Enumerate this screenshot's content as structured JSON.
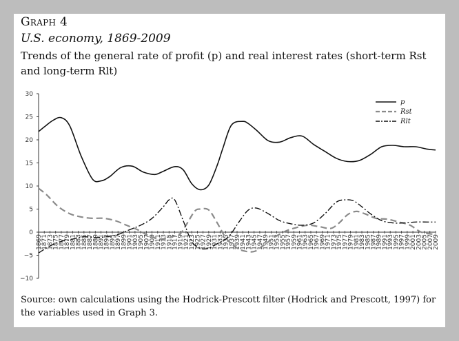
{
  "figure": {
    "label": "Graph 4",
    "title": "U.S. economy, 1869-2009",
    "subtitle": "Trends of the general rate of profit (p) and real interest rates (short-term Rst and long-term Rlt)",
    "source": "Source: own calculations using the Hodrick-Prescott filter (Hodrick and Prescott, 1997) for the variables used in Graph 3."
  },
  "chart_data": {
    "type": "line",
    "title": "",
    "xlabel": "",
    "ylabel": "",
    "ylim": [
      -10,
      30
    ],
    "yticks": [
      -10,
      -5,
      0,
      5,
      10,
      15,
      20,
      25,
      30
    ],
    "xlim": [
      1869,
      2009
    ],
    "x_tick_labels": [
      "1869",
      "1871",
      "1873",
      "1875",
      "1877",
      "1879",
      "1881",
      "1883",
      "1885",
      "1887",
      "1889",
      "1891",
      "1893",
      "1895",
      "1897",
      "1899",
      "1901",
      "1903",
      "1905",
      "1907",
      "1909",
      "1911",
      "1913",
      "1915",
      "1917",
      "1919",
      "1921",
      "1923",
      "1925",
      "1927",
      "1929",
      "1931",
      "1933",
      "1935",
      "1937",
      "1939",
      "1941",
      "1943",
      "1945",
      "1947",
      "1949",
      "1951",
      "1953",
      "1955",
      "1957",
      "1959",
      "1961",
      "1963",
      "1965",
      "1967",
      "1969",
      "1971",
      "1973",
      "1975",
      "1977",
      "1979",
      "1981",
      "1983",
      "1985",
      "1987",
      "1989",
      "1991",
      "1993",
      "1995",
      "1997",
      "1999",
      "2001",
      "2003",
      "2005",
      "2007",
      "2009"
    ],
    "grid": false,
    "legend_position": "top-right",
    "series": [
      {
        "name": "p",
        "style": "solid",
        "color": "#111111",
        "x": [
          1869,
          1871,
          1874,
          1877,
          1880,
          1884,
          1888,
          1891,
          1894,
          1898,
          1902,
          1906,
          1910,
          1913,
          1917,
          1920,
          1923,
          1926,
          1929,
          1932,
          1934,
          1937,
          1941,
          1943,
          1946,
          1950,
          1954,
          1958,
          1962,
          1966,
          1970,
          1974,
          1978,
          1982,
          1986,
          1990,
          1994,
          1998,
          2002,
          2006,
          2009
        ],
        "y": [
          21.8,
          22.8,
          24.2,
          24.8,
          23.0,
          16.5,
          11.5,
          11.1,
          12.0,
          14.0,
          14.3,
          13.0,
          12.5,
          13.2,
          14.2,
          13.5,
          10.5,
          9.2,
          10.2,
          14.5,
          18.2,
          23.2,
          24.0,
          23.5,
          22.0,
          19.8,
          19.5,
          20.5,
          20.8,
          19.0,
          17.5,
          16.0,
          15.3,
          15.5,
          16.8,
          18.5,
          18.8,
          18.5,
          18.5,
          18.0,
          17.8
        ]
      },
      {
        "name": "Rst",
        "style": "dashed",
        "color": "#8a8a8a",
        "x": [
          1869,
          1872,
          1876,
          1880,
          1884,
          1888,
          1892,
          1896,
          1900,
          1904,
          1908,
          1912,
          1916,
          1919,
          1921,
          1924,
          1926,
          1929,
          1932,
          1935,
          1938,
          1941,
          1945,
          1948,
          1952,
          1956,
          1960,
          1964,
          1968,
          1972,
          1975,
          1978,
          1981,
          1984,
          1988,
          1992,
          1996,
          2000,
          2004,
          2009
        ],
        "y": [
          9.5,
          8.0,
          5.5,
          4.0,
          3.3,
          3.0,
          3.0,
          2.5,
          1.5,
          0.5,
          -0.8,
          -1.5,
          -1.0,
          -0.3,
          1.5,
          4.5,
          5.0,
          4.8,
          2.0,
          -1.2,
          -3.0,
          -4.0,
          -4.2,
          -3.0,
          -1.2,
          0.2,
          1.0,
          1.5,
          1.2,
          0.8,
          2.0,
          3.8,
          4.5,
          4.0,
          3.0,
          2.8,
          2.2,
          1.5,
          0.0,
          -0.5
        ]
      },
      {
        "name": "Rlt",
        "style": "dashdot",
        "color": "#111111",
        "x": [
          1869,
          1873,
          1877,
          1881,
          1885,
          1889,
          1893,
          1897,
          1901,
          1905,
          1909,
          1913,
          1915,
          1917,
          1920,
          1923,
          1926,
          1929,
          1932,
          1936,
          1940,
          1943,
          1946,
          1950,
          1954,
          1958,
          1962,
          1966,
          1970,
          1974,
          1977,
          1980,
          1983,
          1986,
          1990,
          1994,
          1998,
          2002,
          2006,
          2009
        ],
        "y": [
          -4.5,
          -3.0,
          -2.0,
          -1.5,
          -1.0,
          -1.2,
          -1.0,
          -0.5,
          0.5,
          1.5,
          3.0,
          5.5,
          7.0,
          7.0,
          2.5,
          -2.0,
          -3.5,
          -3.5,
          -2.5,
          -1.0,
          2.5,
          4.8,
          5.2,
          4.0,
          2.5,
          1.8,
          1.5,
          2.0,
          4.0,
          6.5,
          7.0,
          6.8,
          5.5,
          4.0,
          2.5,
          2.0,
          2.0,
          2.2,
          2.2,
          2.2
        ]
      }
    ]
  }
}
